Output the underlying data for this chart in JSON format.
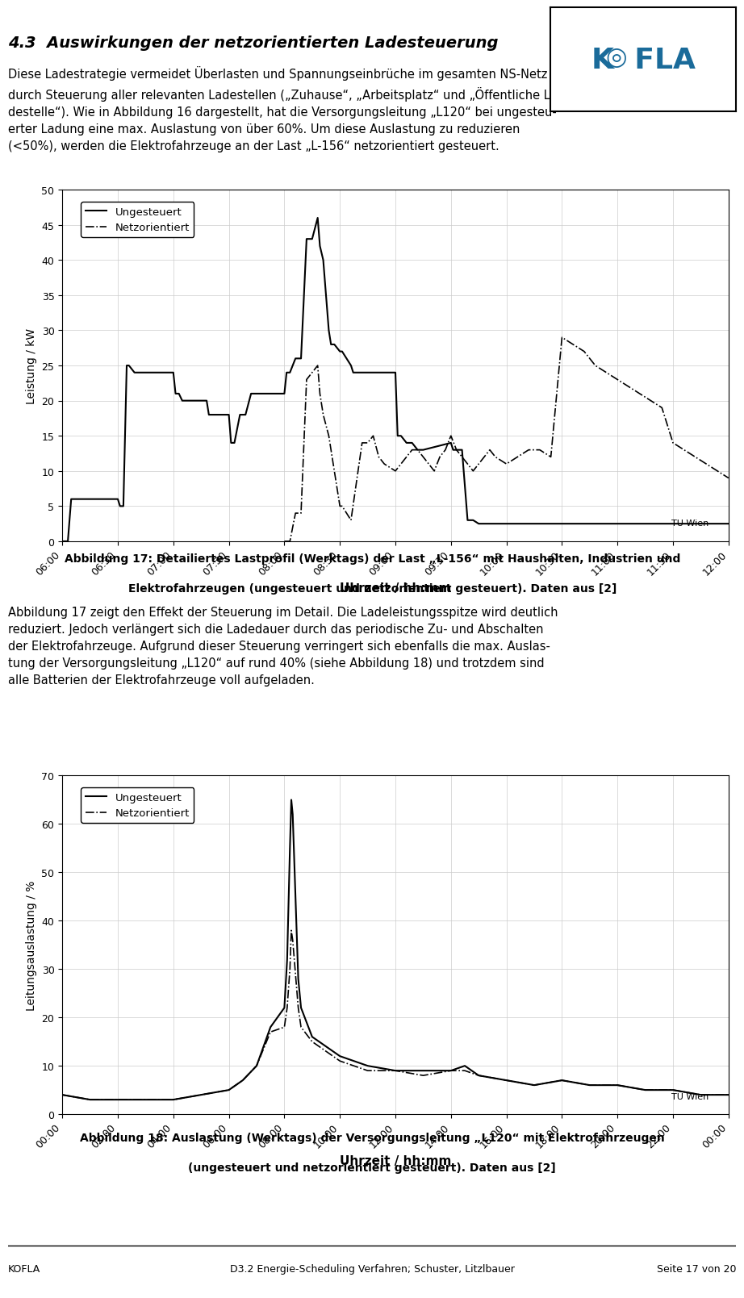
{
  "title_section": "4.3  Auswirkungen der netzorientierten Ladesteuerung",
  "body_text_1": "Diese Ladestrategie vermeidet Überlasten und Spannungseinbrüche im gesamten NS-Netz durch Steuerung aller relevanten Ladestellen („Zuhause“, „Arbeitsplatz“ und „Öffentliche Ladestelle“). Wie in Abbildung 16 dargestellt, hat die Versorgungsleitung „L120“ bei ungesteu-erter Ladung eine max. Auslastung von über 60%. Um diese Auslastung zu reduzieren (<50%), werden die Elektrofahrzeuge an der Last „L-156“ netzorientiert gesteuert.",
  "chart1_ylabel": "Leistung / kW",
  "chart1_xlabel": "Uhrzeit / hh:mm",
  "chart1_ylim": [
    0,
    50
  ],
  "chart1_yticks": [
    0,
    5,
    10,
    15,
    20,
    25,
    30,
    35,
    40,
    45,
    50
  ],
  "chart1_xticks": [
    "06:00",
    "06:30",
    "07:00",
    "07:30",
    "08:00",
    "08:30",
    "09:00",
    "09:30",
    "10:00",
    "10:30",
    "11:00",
    "11:30",
    "12:00"
  ],
  "chart1_caption": "Abbildung 17: Detailiertes Lastprofil (Werktags) der Last „L-156“ mit Haushalten, Industrien und\nElektrofahrzeugen (ungesteuert und netzorientiert gesteuert). Daten aus [2]",
  "chart2_ylabel": "Leitungsauslastung / %",
  "chart2_xlabel": "Uhrzeit / hh:mm",
  "chart2_ylim": [
    0,
    70
  ],
  "chart2_yticks": [
    0,
    10,
    20,
    30,
    40,
    50,
    60,
    70
  ],
  "chart2_xticks": [
    "00:00",
    "02:00",
    "04:00",
    "06:00",
    "08:00",
    "10:00",
    "12:00",
    "14:00",
    "16:00",
    "18:00",
    "20:00",
    "22:00",
    "00:00"
  ],
  "chart2_caption": "Abbildung 18: Auslastung (Werktags) der Versorgungsleitung „L120“ mit Elektrofahrzeugen\n(ungesteuert und netzorientiert gesteuert). Daten aus [2]",
  "body_text_2": "Abbildung 17 zeigt den Effekt der Steuerung im Detail. Die Ladeleistungsspitze wird deutlich reduziert. Jedoch verlängert sich die Ladedauer durch das periodische Zu- und Abschalten der Elektrofahrzeuge. Aufgrund dieser Steuerung verringert sich ebenfalls die max. Auslastung der Versorgungsleitung „L120“ auf rund 40% (siehe Abbildung 18) und trotzdem sind alle Batterien der Elektrofahrzeuge voll aufgeladen.",
  "footer_left": "KOFLA",
  "footer_center": "D3.2 Energie-Scheduling Verfahren; Schuster, Litzlbauer",
  "footer_right": "Seite 17 von 20",
  "legend_ungesteuert": "Ungesteuert",
  "legend_netzorientiert": "Netzorientiert",
  "tu_wien_label": "TU Wien",
  "color_solid": "#000000",
  "color_dash": "#555555",
  "bg_color": "#ffffff"
}
